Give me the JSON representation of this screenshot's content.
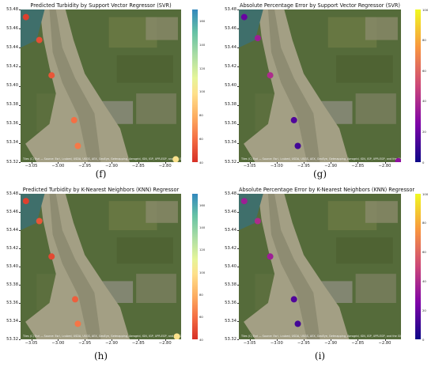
{
  "chart_data": [
    {
      "type": "scatter",
      "title": "Predicted Turbidity by Support Vector Regressor (SVR)",
      "caption": "(f)",
      "x_ticks": [
        "−3.05",
        "−3.00",
        "−2.95",
        "−2.90",
        "−2.85",
        "−2.80"
      ],
      "y_ticks": [
        "53.48",
        "53.46",
        "53.44",
        "53.42",
        "53.40",
        "53.38",
        "53.36",
        "53.34",
        "53.32"
      ],
      "xlim": [
        -3.07,
        -2.77
      ],
      "ylim": [
        53.32,
        53.48
      ],
      "colorbar_ticks": [
        "160",
        "140",
        "120",
        "100",
        "80",
        "60",
        "40"
      ],
      "colorbar_range": [
        40,
        170
      ],
      "colorscale": "Spectral",
      "points": [
        {
          "x": -3.06,
          "y": 53.472,
          "value": 45
        },
        {
          "x": -3.035,
          "y": 53.448,
          "value": 50
        },
        {
          "x": -3.012,
          "y": 53.411,
          "value": 52
        },
        {
          "x": -2.97,
          "y": 53.364,
          "value": 60
        },
        {
          "x": -2.963,
          "y": 53.337,
          "value": 63
        },
        {
          "x": -2.78,
          "y": 53.323,
          "value": 100
        }
      ],
      "attribution": "Tiles (C) Esri — Source: Esri, i-cubed, USDA, USGS, AEX, GeoEye, Getmapping, Aerogrid, IGN, IGP, UPR-EGP, and the GIS User Community"
    },
    {
      "type": "scatter",
      "title": "Absolute Percentage Error by Support Vector Regressor (SVR)",
      "caption": "(g)",
      "x_ticks": [
        "−3.05",
        "−3.00",
        "−2.95",
        "−2.90",
        "−2.85",
        "−2.80"
      ],
      "y_ticks": [
        "53.48",
        "53.46",
        "53.44",
        "53.42",
        "53.40",
        "53.38",
        "53.36",
        "53.34",
        "53.32"
      ],
      "xlim": [
        -3.07,
        -2.77
      ],
      "ylim": [
        53.32,
        53.48
      ],
      "colorbar_ticks": [
        "100",
        "80",
        "60",
        "40",
        "20",
        "0"
      ],
      "colorbar_range": [
        0,
        100
      ],
      "colorscale": "plasma",
      "points": [
        {
          "x": -3.06,
          "y": 53.472,
          "value": 20
        },
        {
          "x": -3.035,
          "y": 53.45,
          "value": 35
        },
        {
          "x": -3.012,
          "y": 53.411,
          "value": 40
        },
        {
          "x": -2.968,
          "y": 53.364,
          "value": 15
        },
        {
          "x": -2.961,
          "y": 53.337,
          "value": 12
        },
        {
          "x": -2.775,
          "y": 53.321,
          "value": 30
        }
      ],
      "attribution": "Tiles (C) Esri — Source: Esri, i-cubed, USDA, USGS, AEX, GeoEye, Getmapping, Aerogrid, IGN, IGP, UPR-EGP, and the GIS User Community"
    },
    {
      "type": "scatter",
      "title": "Predicted Turbidity by K-Nearest Neighbors (KNN) Regressor",
      "caption": "(h)",
      "x_ticks": [
        "−3.05",
        "−3.00",
        "−2.95",
        "−2.90",
        "−2.85",
        "−2.80"
      ],
      "y_ticks": [
        "53.48",
        "53.46",
        "53.44",
        "53.42",
        "53.40",
        "53.38",
        "53.36",
        "53.34",
        "53.32"
      ],
      "xlim": [
        -3.07,
        -2.77
      ],
      "ylim": [
        53.32,
        53.48
      ],
      "colorbar_ticks": [
        "160",
        "140",
        "120",
        "100",
        "80",
        "60",
        "40"
      ],
      "colorbar_range": [
        40,
        170
      ],
      "colorscale": "Spectral",
      "points": [
        {
          "x": -3.06,
          "y": 53.472,
          "value": 45
        },
        {
          "x": -3.035,
          "y": 53.45,
          "value": 52
        },
        {
          "x": -3.012,
          "y": 53.411,
          "value": 48
        },
        {
          "x": -2.968,
          "y": 53.364,
          "value": 55
        },
        {
          "x": -2.963,
          "y": 53.337,
          "value": 62
        },
        {
          "x": -2.778,
          "y": 53.323,
          "value": 100
        }
      ],
      "attribution": "Tiles (C) Esri — Source: Esri, i-cubed, USDA, USGS, AEX, GeoEye, Getmapping, Aerogrid, IGN, IGP, UPR-EGP, and the GIS User Community"
    },
    {
      "type": "scatter",
      "title": "Absolute Percentage Error by K-Nearest Neighbors (KNN) Regressor",
      "caption": "(i)",
      "x_ticks": [
        "−3.05",
        "−3.00",
        "−2.95",
        "−2.90",
        "−2.85",
        "−2.80"
      ],
      "y_ticks": [
        "53.48",
        "53.46",
        "53.44",
        "53.42",
        "53.40",
        "53.38",
        "53.36",
        "53.34",
        "53.32"
      ],
      "xlim": [
        -3.07,
        -2.77
      ],
      "ylim": [
        53.32,
        53.48
      ],
      "colorbar_ticks": [
        "100",
        "80",
        "60",
        "40",
        "20",
        "0"
      ],
      "colorbar_range": [
        0,
        100
      ],
      "colorscale": "plasma",
      "points": [
        {
          "x": -3.06,
          "y": 53.472,
          "value": 35
        },
        {
          "x": -3.035,
          "y": 53.45,
          "value": 40
        },
        {
          "x": -3.012,
          "y": 53.411,
          "value": 35
        },
        {
          "x": -2.968,
          "y": 53.364,
          "value": 15
        },
        {
          "x": -2.961,
          "y": 53.337,
          "value": 12
        }
      ],
      "attribution": "Tiles (C) Esri — Source: Esri, i-cubed, USDA, USGS, AEX, GeoEye, Getmapping, Aerogrid, IGN, IGP, UPR-EGP, and the GIS User Community"
    }
  ]
}
